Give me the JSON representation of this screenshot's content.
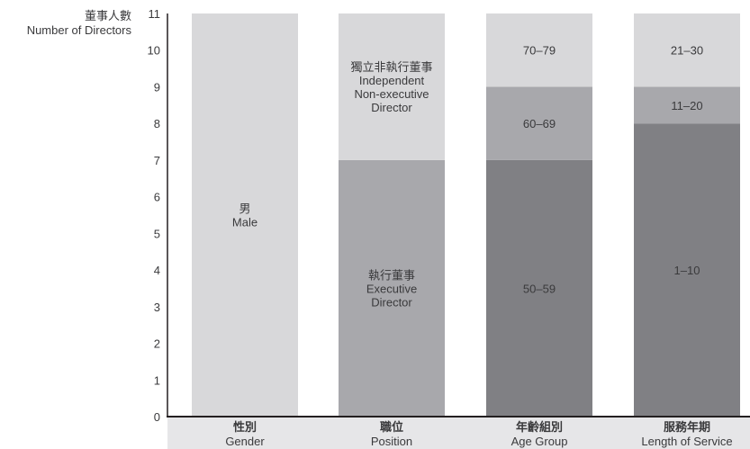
{
  "chart_data": {
    "type": "bar",
    "stacked": true,
    "ylabel_zh": "董事人數",
    "ylabel": "Number of Directors",
    "ylim": [
      0,
      11
    ],
    "yticks": [
      0,
      1,
      2,
      3,
      4,
      5,
      6,
      7,
      8,
      9,
      10,
      11
    ],
    "categories": [
      {
        "zh": "性別",
        "en": "Gender"
      },
      {
        "zh": "職位",
        "en": "Position"
      },
      {
        "zh": "年齡組別",
        "en": "Age Group"
      },
      {
        "zh": "服務年期",
        "en": "Length of Service"
      }
    ],
    "stacks": [
      [
        {
          "value": 11,
          "label_lines": [
            "男",
            "Male"
          ],
          "color": "#d8d8da"
        }
      ],
      [
        {
          "value": 7,
          "label_lines": [
            "執行董事",
            "Executive",
            "Director"
          ],
          "color": "#a8a8ac"
        },
        {
          "value": 4,
          "label_lines": [
            "獨立非執行董事",
            "Independent",
            "Non-executive",
            "Director"
          ],
          "color": "#d8d8da"
        }
      ],
      [
        {
          "value": 7,
          "label_lines": [
            "50–59"
          ],
          "color": "#808084"
        },
        {
          "value": 2,
          "label_lines": [
            "60–69"
          ],
          "color": "#a8a8ac"
        },
        {
          "value": 2,
          "label_lines": [
            "70–79"
          ],
          "color": "#d8d8da"
        }
      ],
      [
        {
          "value": 8,
          "label_lines": [
            "1–10"
          ],
          "color": "#808084"
        },
        {
          "value": 1,
          "label_lines": [
            "11–20"
          ],
          "color": "#a8a8ac"
        },
        {
          "value": 2,
          "label_lines": [
            "21–30"
          ],
          "color": "#d8d8da"
        }
      ]
    ],
    "grid": false,
    "colors": {
      "axis": "#231f20",
      "text": "#3a3a3c",
      "category_band": "#e6e6e8"
    }
  }
}
